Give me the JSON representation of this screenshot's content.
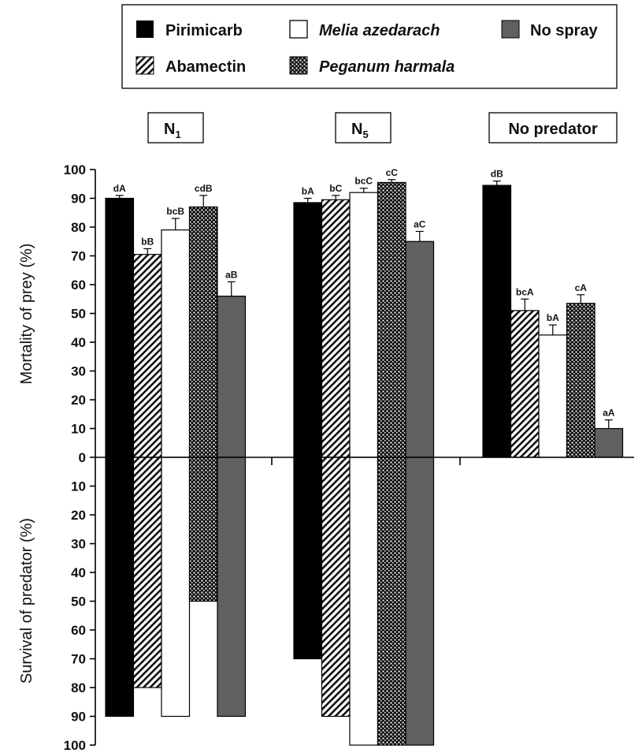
{
  "chart_data": {
    "type": "bar",
    "groups": [
      {
        "label": "N",
        "subscript": "1"
      },
      {
        "label": "N",
        "subscript": "5"
      },
      {
        "label": "No predator",
        "subscript": ""
      }
    ],
    "legend": [
      {
        "name": "Pirimicarb",
        "italic": false,
        "fill": "solid-black"
      },
      {
        "name": "Melia azedarach",
        "italic": true,
        "fill": "white"
      },
      {
        "name": "No spray",
        "italic": false,
        "fill": "gray"
      },
      {
        "name": "Abamectin",
        "italic": false,
        "fill": "diagonal-hatch"
      },
      {
        "name": "Peganum harmala",
        "italic": true,
        "fill": "dotted"
      }
    ],
    "ylabel_top": "Mortality of prey (%)",
    "ylabel_bottom": "Survival of predator (%)",
    "ylim_top": [
      0,
      100
    ],
    "ylim_bottom": [
      0,
      100
    ],
    "y_ticks": [
      0,
      10,
      20,
      30,
      40,
      50,
      60,
      70,
      80,
      90,
      100
    ],
    "mortality_of_prey": {
      "series": [
        {
          "name": "Pirimicarb",
          "values": [
            90,
            88.5,
            94.5
          ],
          "errors": [
            1,
            1.5,
            1.5
          ],
          "labels": [
            "dA",
            "bA",
            "dB"
          ]
        },
        {
          "name": "Abamectin",
          "values": [
            70.5,
            89.5,
            51
          ],
          "errors": [
            2,
            1.5,
            4
          ],
          "labels": [
            "bB",
            "bC",
            "bcA"
          ]
        },
        {
          "name": "Melia azedarach",
          "values": [
            79,
            92,
            42.5
          ],
          "errors": [
            4,
            1.5,
            3.5
          ],
          "labels": [
            "bcB",
            "bcC",
            "bA"
          ]
        },
        {
          "name": "Peganum harmala",
          "values": [
            87,
            95.5,
            53.5
          ],
          "errors": [
            4,
            1,
            3
          ],
          "labels": [
            "cdB",
            "cC",
            "cA"
          ]
        },
        {
          "name": "No spray",
          "values": [
            56,
            75,
            10
          ],
          "errors": [
            5,
            3.5,
            3
          ],
          "labels": [
            "aB",
            "aC",
            "aA"
          ]
        }
      ]
    },
    "survival_of_predator": {
      "series": [
        {
          "name": "Pirimicarb",
          "values": [
            90,
            70
          ]
        },
        {
          "name": "Abamectin",
          "values": [
            80,
            90
          ]
        },
        {
          "name": "Melia azedarach",
          "values": [
            90,
            100
          ]
        },
        {
          "name": "Peganum harmala",
          "values": [
            50,
            100
          ]
        },
        {
          "name": "No spray",
          "values": [
            90,
            100
          ]
        }
      ]
    },
    "colors": {
      "black": "#000000",
      "gray": "#606060",
      "white": "#ffffff",
      "outline": "#000000"
    }
  }
}
